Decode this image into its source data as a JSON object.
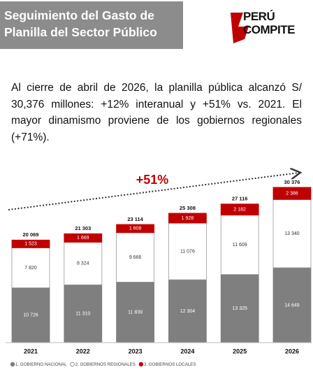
{
  "header": {
    "title_lines": [
      "Seguimiento del Gasto de",
      "Planilla del Sector Público"
    ],
    "logo_lines": [
      "PERÚ",
      "COMPITE"
    ]
  },
  "intro": "Al cierre de abril de 2026, la planilla pública alcanzó S/ 30,376 millones: +12% interanual y +51% vs. 2021. El mayor dinamismo proviene de los gobiernos regionales (+71%).",
  "chart_data": {
    "type": "stacked_bar",
    "annotation": "+51%",
    "categories": [
      "2021",
      "2022",
      "2023",
      "2024",
      "2025",
      "2026"
    ],
    "series": [
      {
        "name": "1. GOBIERNO NACIONAL",
        "color": "#7f7f7f",
        "values": [
          10726,
          11310,
          11839,
          12304,
          13325,
          14649
        ],
        "value_labels": [
          "10 726",
          "11 310",
          "11 839",
          "12 304",
          "13 325",
          "14 649"
        ]
      },
      {
        "name": "2. GOBIERNOS REGIONALES",
        "color": "#ffffff",
        "values": [
          7820,
          8324,
          9666,
          11076,
          11609,
          13340
        ],
        "value_labels": [
          "7 820",
          "8 324",
          "9 666",
          "11 076",
          "11 609",
          "13 340"
        ]
      },
      {
        "name": "3. GOBIERNOS LOCALES",
        "color": "#c00000",
        "values": [
          1523,
          1669,
          1608,
          1928,
          2182,
          2386
        ],
        "value_labels": [
          "1 523",
          "1 669",
          "1 608",
          "1 928",
          "2 182",
          "2 386"
        ]
      }
    ],
    "totals": [
      20069,
      21303,
      23114,
      25308,
      27116,
      30376
    ],
    "total_labels": [
      "20 069",
      "21 303",
      "23 114",
      "25 308",
      "27 116",
      "30 376"
    ],
    "ylim": [
      0,
      32000
    ]
  }
}
